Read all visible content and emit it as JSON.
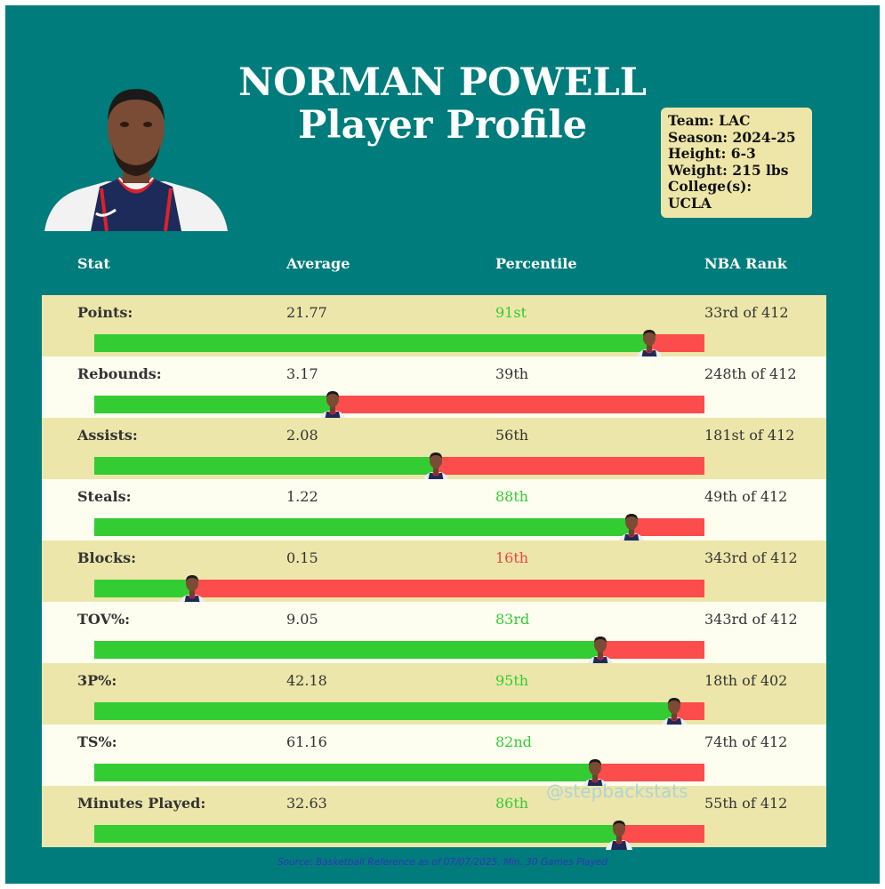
{
  "colors": {
    "background": "#007c7c",
    "row_odd": "#ece6aa",
    "row_even": "#fdfdf0",
    "bar_above": "#33cc33",
    "bar_below": "#fc4c4c",
    "pct_high": "#33cc33",
    "pct_low": "#e84848",
    "pct_mid": "#333333"
  },
  "title_line1": "NORMAN POWELL",
  "title_line2": "Player Profile",
  "info": {
    "team": "Team: LAC",
    "season": "Season: 2024-25",
    "height": "Height: 6-3",
    "weight": "Weight: 215 lbs",
    "college_label": "College(s):",
    "college": "UCLA"
  },
  "headers": {
    "stat": "Stat",
    "average": "Average",
    "percentile": "Percentile",
    "rank": "NBA Rank"
  },
  "chart_data": {
    "type": "bar",
    "categories": [
      "Points:",
      "Rebounds:",
      "Assists:",
      "Steals:",
      "Blocks:",
      "TOV%:",
      "3P%:",
      "TS%:",
      "Minutes Played:"
    ],
    "averages": [
      "21.77",
      "3.17",
      "2.08",
      "1.22",
      "0.15",
      "9.05",
      "42.18",
      "61.16",
      "32.63"
    ],
    "percentile_labels": [
      "91st",
      "39th",
      "56th",
      "88th",
      "16th",
      "83rd",
      "95th",
      "82nd",
      "86th"
    ],
    "values": [
      91,
      39,
      56,
      88,
      16,
      83,
      95,
      82,
      86
    ],
    "ranks": [
      "33rd of 412",
      "248th of 412",
      "181st of 412",
      "49th of 412",
      "343rd of 412",
      "343rd of 412",
      "18th of 402",
      "74th of 412",
      "55th of 412"
    ],
    "ylim": [
      0,
      100
    ]
  },
  "watermark": "@stepbackstats",
  "source": "Source: Basketball Reference as of 07/07/2025. Min. 30 Games Played"
}
